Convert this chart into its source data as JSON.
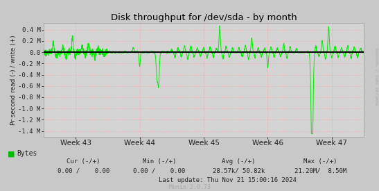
{
  "title": "Disk throughput for /dev/sda - by month",
  "ylabel": "Pr second read (-) / write (+)",
  "xlabel_ticks": [
    "Week 43",
    "Week 44",
    "Week 45",
    "Week 46",
    "Week 47"
  ],
  "yticks": [
    0.4,
    0.2,
    0.0,
    -0.2,
    -0.4,
    -0.6,
    -0.8,
    -1.0,
    -1.2,
    -1.4
  ],
  "ytick_labels": [
    "0.4 M",
    "0.2 M",
    "0.0",
    "-0.2 M",
    "-0.4 M",
    "-0.6 M",
    "-0.8 M",
    "-1.0 M",
    "-1.2 M",
    "-1.4 M"
  ],
  "ylim": [
    -1.5,
    0.52
  ],
  "outer_bg": "#c8c8c8",
  "plot_bg_color": "#d4d4d4",
  "grid_color": "#ff9999",
  "line_color": "#00ee00",
  "zero_line_color": "#000000",
  "title_color": "#000000",
  "side_label": "RRDTOOL / TOBI OETIKER",
  "side_label_color": "#aaaaaa",
  "legend_label": "Bytes",
  "legend_color": "#00bb00",
  "footer_cur": "Cur (-/+)",
  "footer_min": "Min (-/+)",
  "footer_avg": "Avg (-/+)",
  "footer_max": "Max (-/+)",
  "footer_cur_val": "0.00 /    0.00",
  "footer_min_val": "0.00 /    0.00",
  "footer_avg_val": "28.57k/ 50.82k",
  "footer_max_val": "21.20M/  8.50M",
  "footer_lastupdate": "Last update: Thu Nov 21 15:00:16 2024",
  "munin_version": "Munin 2.0.73",
  "seed": 42
}
